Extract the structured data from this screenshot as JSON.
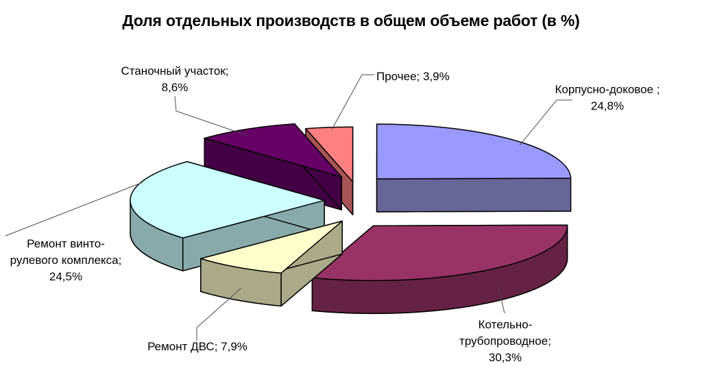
{
  "chart_data": {
    "type": "pie",
    "style": "3d-exploded",
    "title": "Доля отдельных производств в общем объеме работ (в %)",
    "unit": "percent",
    "total": 100,
    "legend_position": "none",
    "labels_format": "name; value%",
    "slices": [
      {
        "name": "Корпусно-доковое",
        "value": 24.8,
        "label_lines": [
          "Корпусно-доковое ;"
        ],
        "pct_label": "24,8%",
        "color": "#9999FF",
        "side_color": "#666699"
      },
      {
        "name": "Котельно-трубопроводное",
        "value": 30.3,
        "label_lines": [
          "Котельно-",
          "трубопроводное;"
        ],
        "pct_label": "30,3%",
        "color": "#993366",
        "side_color": "#662244"
      },
      {
        "name": "Ремонт ДВС",
        "value": 7.9,
        "label_lines": [
          "Ремонт ДВС;"
        ],
        "pct_label": "7,9%",
        "color": "#FFFFCC",
        "side_color": "#AAAA88"
      },
      {
        "name": "Ремонт винто-рулевого комплекса",
        "value": 24.5,
        "label_lines": [
          "Ремонт винто-",
          "рулевого комплекса;"
        ],
        "pct_label": "24,5%",
        "color": "#CCFFFF",
        "side_color": "#88AAAA"
      },
      {
        "name": "Станочный участок",
        "value": 8.6,
        "label_lines": [
          "Станочный участок;"
        ],
        "pct_label": "8,6%",
        "color": "#660066",
        "side_color": "#440044"
      },
      {
        "name": "Прочее",
        "value": 3.9,
        "label_lines": [
          "Прочее;"
        ],
        "pct_label": "3,9%",
        "color": "#FF8080",
        "side_color": "#AA5555"
      }
    ],
    "outline_color": "#000000",
    "leader_line_color": "#4a4a4a"
  }
}
